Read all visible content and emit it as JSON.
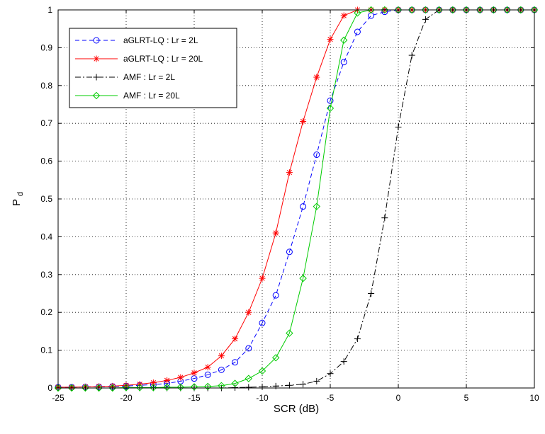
{
  "chart_data": {
    "type": "line",
    "xlabel": "SCR (dB)",
    "ylabel": "P",
    "ylabel_subscript": "d",
    "xlim": [
      -25,
      10
    ],
    "ylim": [
      0,
      1
    ],
    "xticks": [
      -25,
      -20,
      -15,
      -10,
      -5,
      0,
      5,
      10
    ],
    "yticks": [
      0,
      0.1,
      0.2,
      0.3,
      0.4,
      0.5,
      0.6,
      0.7,
      0.8,
      0.9,
      1
    ],
    "grid": true,
    "legend_position": "top-left",
    "x": [
      -25,
      -24,
      -23,
      -22,
      -21,
      -20,
      -19,
      -18,
      -17,
      -16,
      -15,
      -14,
      -13,
      -12,
      -11,
      -10,
      -9,
      -8,
      -7,
      -6,
      -5,
      -4,
      -3,
      -2,
      -1,
      0,
      1,
      2,
      3,
      4,
      5,
      6,
      7,
      8,
      9,
      10
    ],
    "series": [
      {
        "name": "aGLRT-LQ : Lr = 2L",
        "color": "#0000ff",
        "line_style": "dashed",
        "marker": "circle",
        "values": [
          0.002,
          0.002,
          0.003,
          0.003,
          0.004,
          0.005,
          0.007,
          0.009,
          0.012,
          0.018,
          0.025,
          0.035,
          0.048,
          0.068,
          0.105,
          0.172,
          0.245,
          0.36,
          0.48,
          0.617,
          0.76,
          0.862,
          0.942,
          0.985,
          0.995,
          1,
          1,
          1,
          1,
          1,
          1,
          1,
          1,
          1,
          1,
          1
        ]
      },
      {
        "name": "aGLRT-LQ : Lr = 20L",
        "color": "#ff0000",
        "line_style": "solid",
        "marker": "asterisk",
        "values": [
          0.002,
          0.002,
          0.003,
          0.004,
          0.005,
          0.007,
          0.01,
          0.014,
          0.02,
          0.028,
          0.04,
          0.055,
          0.085,
          0.13,
          0.2,
          0.29,
          0.41,
          0.57,
          0.705,
          0.822,
          0.922,
          0.985,
          1,
          1,
          1,
          1,
          1,
          1,
          1,
          1,
          1,
          1,
          1,
          1,
          1,
          1
        ]
      },
      {
        "name": "AMF : Lr = 2L",
        "color": "#000000",
        "line_style": "dashdot",
        "marker": "plus",
        "values": [
          0,
          0,
          0,
          0,
          0,
          0,
          0,
          0,
          0,
          0,
          0,
          0,
          0,
          0.001,
          0.002,
          0.003,
          0.005,
          0.007,
          0.01,
          0.018,
          0.038,
          0.07,
          0.13,
          0.25,
          0.45,
          0.69,
          0.88,
          0.975,
          1,
          1,
          1,
          1,
          1,
          1,
          1,
          1
        ]
      },
      {
        "name": "AMF : Lr = 20L",
        "color": "#00cc00",
        "line_style": "solid",
        "marker": "diamond",
        "values": [
          0,
          0,
          0,
          0,
          0,
          0.001,
          0.001,
          0.001,
          0.002,
          0.002,
          0.003,
          0.004,
          0.006,
          0.012,
          0.025,
          0.045,
          0.08,
          0.145,
          0.29,
          0.48,
          0.74,
          0.92,
          0.992,
          1,
          1,
          1,
          1,
          1,
          1,
          1,
          1,
          1,
          1,
          1,
          1,
          1
        ]
      }
    ]
  }
}
